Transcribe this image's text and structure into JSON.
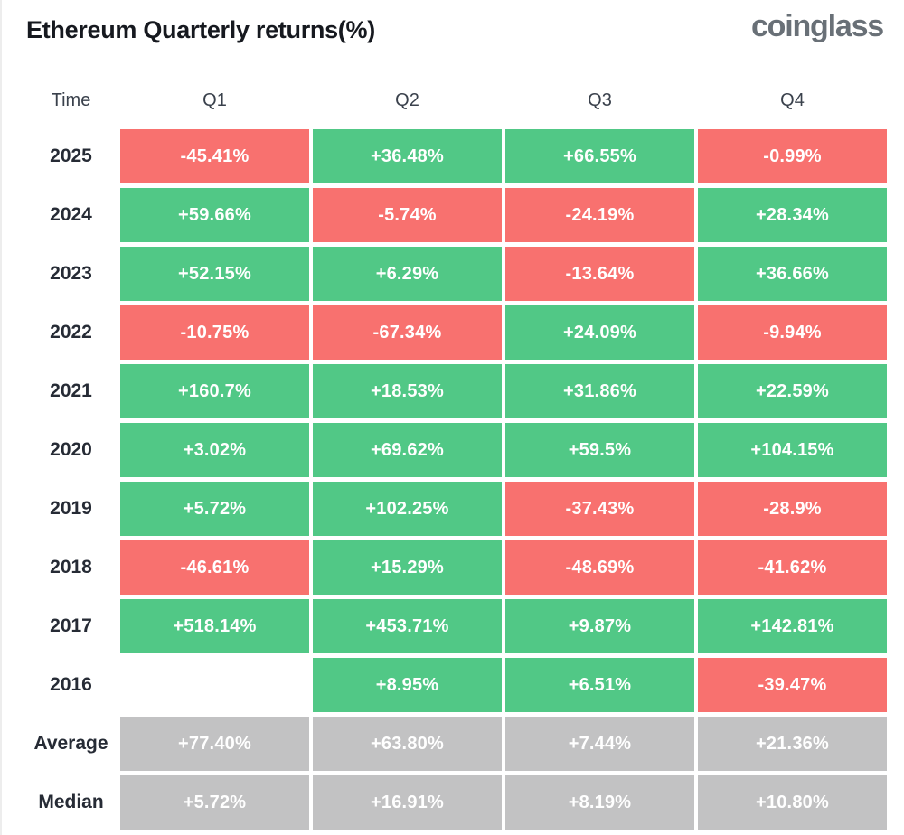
{
  "page": {
    "title": "Ethereum Quarterly returns(%)",
    "logo": "coinglass"
  },
  "colors": {
    "positive": "#51C886",
    "negative": "#F8716F",
    "summary": "#C2C2C3",
    "header_text": "#3A414C",
    "label_text": "#262B35",
    "title_text": "#16191F",
    "logo_text": "#697077",
    "cell_text": "#FFFFFF",
    "background": "#FFFFFF"
  },
  "chart_data": {
    "type": "heatmap",
    "title": "Ethereum Quarterly returns(%)",
    "value_unit": "%",
    "columns": [
      "Time",
      "Q1",
      "Q2",
      "Q3",
      "Q4"
    ],
    "rows": [
      {
        "label": "2025",
        "kind": "year",
        "values": [
          "-45.41%",
          "+36.48%",
          "+66.55%",
          "-0.99%"
        ]
      },
      {
        "label": "2024",
        "kind": "year",
        "values": [
          "+59.66%",
          "-5.74%",
          "-24.19%",
          "+28.34%"
        ]
      },
      {
        "label": "2023",
        "kind": "year",
        "values": [
          "+52.15%",
          "+6.29%",
          "-13.64%",
          "+36.66%"
        ]
      },
      {
        "label": "2022",
        "kind": "year",
        "values": [
          "-10.75%",
          "-67.34%",
          "+24.09%",
          "-9.94%"
        ]
      },
      {
        "label": "2021",
        "kind": "year",
        "values": [
          "+160.7%",
          "+18.53%",
          "+31.86%",
          "+22.59%"
        ]
      },
      {
        "label": "2020",
        "kind": "year",
        "values": [
          "+3.02%",
          "+69.62%",
          "+59.5%",
          "+104.15%"
        ]
      },
      {
        "label": "2019",
        "kind": "year",
        "values": [
          "+5.72%",
          "+102.25%",
          "-37.43%",
          "-28.9%"
        ]
      },
      {
        "label": "2018",
        "kind": "year",
        "values": [
          "-46.61%",
          "+15.29%",
          "-48.69%",
          "-41.62%"
        ]
      },
      {
        "label": "2017",
        "kind": "year",
        "values": [
          "+518.14%",
          "+453.71%",
          "+9.87%",
          "+142.81%"
        ]
      },
      {
        "label": "2016",
        "kind": "year",
        "values": [
          "",
          "+8.95%",
          "+6.51%",
          "-39.47%"
        ]
      },
      {
        "label": "Average",
        "kind": "summary",
        "values": [
          "+77.40%",
          "+63.80%",
          "+7.44%",
          "+21.36%"
        ]
      },
      {
        "label": "Median",
        "kind": "summary",
        "values": [
          "+5.72%",
          "+16.91%",
          "+8.19%",
          "+10.80%"
        ]
      }
    ],
    "color_rule": "positive=green, negative=red, summary-rows=gray, missing=blank"
  }
}
